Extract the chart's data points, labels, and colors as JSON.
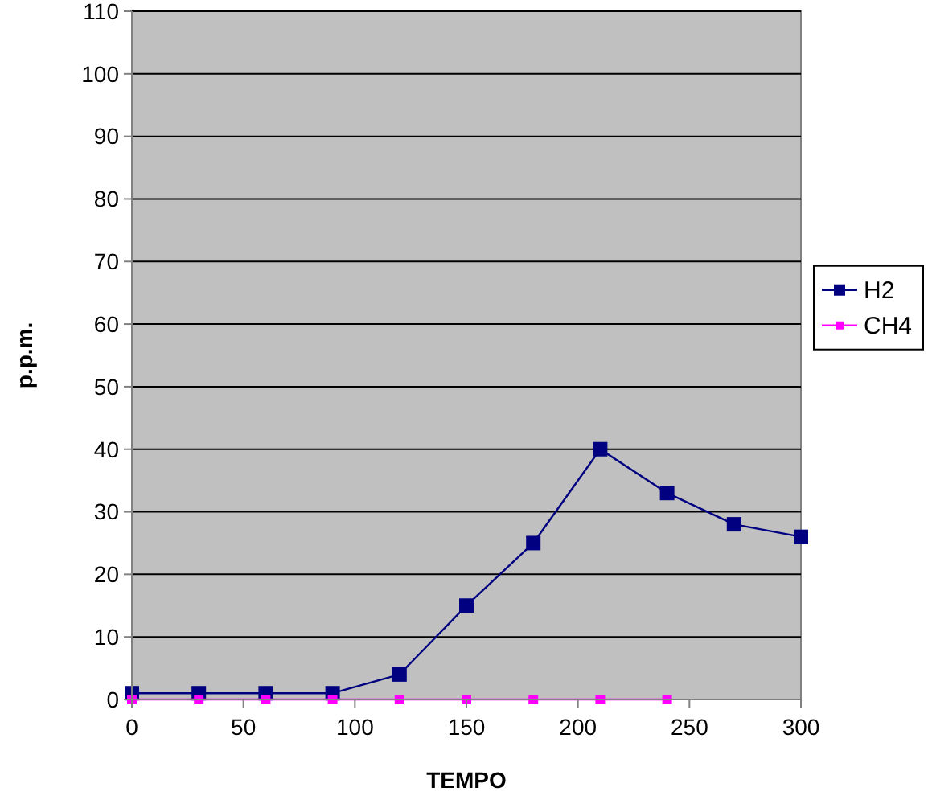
{
  "chart_data": {
    "type": "line",
    "xlabel": "TEMPO",
    "ylabel": "p.p.m.",
    "xlim": [
      0,
      300
    ],
    "xticks": [
      0,
      50,
      100,
      150,
      200,
      250,
      300
    ],
    "ylim": [
      0,
      110
    ],
    "yticks": [
      0,
      10,
      20,
      30,
      40,
      50,
      60,
      70,
      80,
      90,
      100,
      110
    ],
    "grid": "y",
    "legend": "right",
    "marker": "square",
    "line_style": "solid",
    "series": [
      {
        "name": "H2",
        "color": "#000080",
        "x": [
          0,
          30,
          60,
          90,
          120,
          150,
          180,
          210,
          240,
          270,
          300
        ],
        "values": [
          1,
          1,
          1,
          1,
          4,
          15,
          25,
          40,
          33,
          28,
          26
        ]
      },
      {
        "name": "CH4",
        "color": "#ff00ff",
        "x": [
          0,
          30,
          60,
          90,
          120,
          150,
          180,
          210,
          240
        ],
        "values": [
          0,
          0,
          0,
          0,
          0,
          0,
          0,
          0,
          0
        ]
      }
    ]
  }
}
